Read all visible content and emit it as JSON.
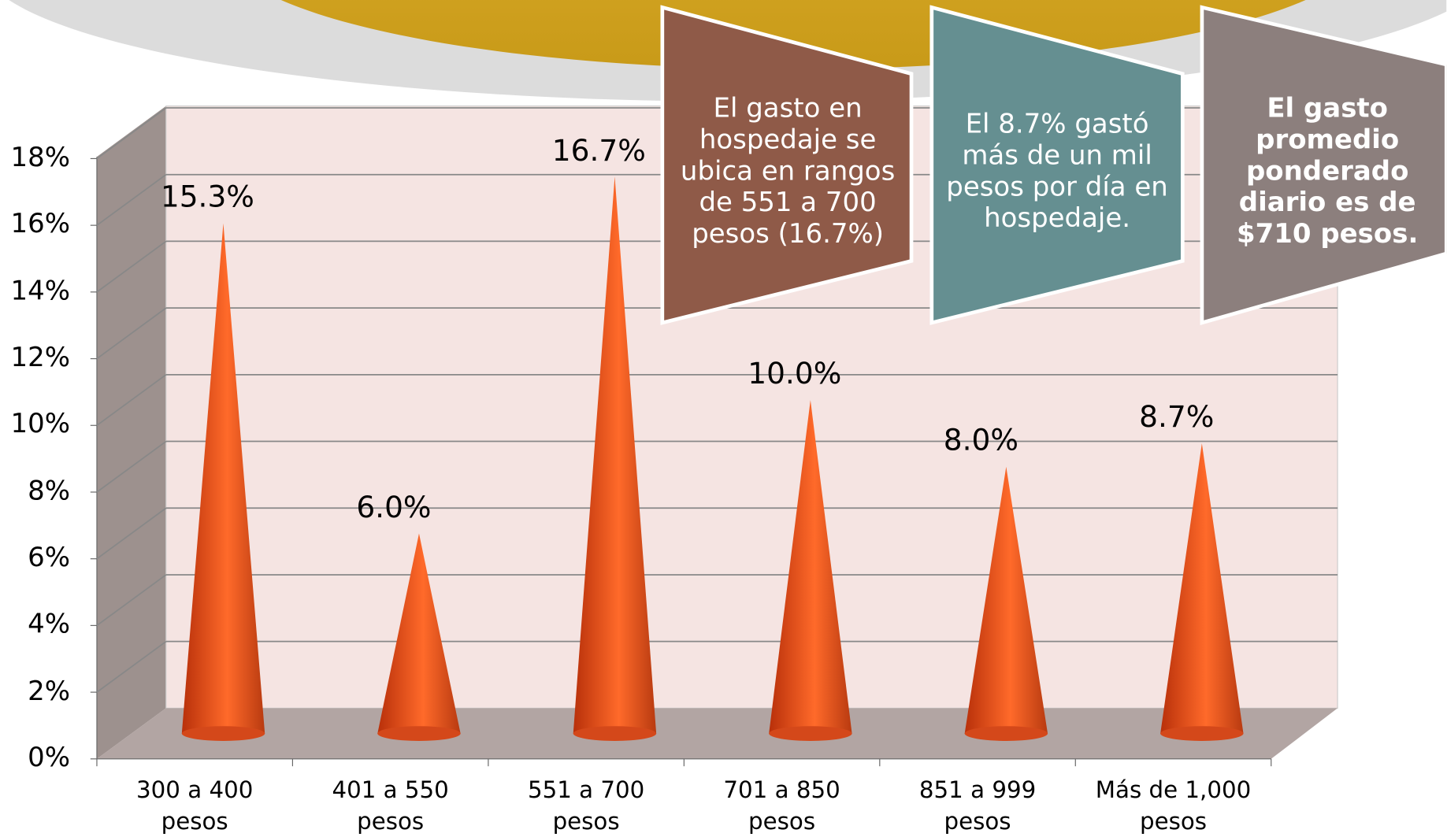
{
  "chart_data": {
    "type": "cone3d",
    "categories": [
      "300 a 400 pesos",
      "401 a 550 pesos",
      "551 a 700 pesos",
      "701 a 850 pesos",
      "851 a 999 pesos",
      "Más de 1,000 pesos"
    ],
    "values": [
      15.3,
      6.0,
      16.7,
      10.0,
      8.0,
      8.7
    ],
    "value_labels": [
      "15.3%",
      "6.0%",
      "16.7%",
      "10.0%",
      "8.0%",
      "8.7%"
    ],
    "color": "#e8501c",
    "ylim": [
      0,
      18
    ],
    "yticks": [
      {
        "value": 0,
        "label": "0%"
      },
      {
        "value": 2,
        "label": "2%"
      },
      {
        "value": 4,
        "label": "4%"
      },
      {
        "value": 6,
        "label": "6%"
      },
      {
        "value": 8,
        "label": "8%"
      },
      {
        "value": 10,
        "label": "10%"
      },
      {
        "value": 12,
        "label": "12%"
      },
      {
        "value": 14,
        "label": "14%"
      },
      {
        "value": 16,
        "label": "16%"
      },
      {
        "value": 18,
        "label": "18%"
      }
    ],
    "grid": true,
    "annotations": [
      {
        "text": "El gasto en hospedaje se ubica en rangos de 551 a 700 pesos (16.7%)",
        "color": "#8f5a48",
        "bold": false
      },
      {
        "text": "El 8.7% gastó más de un mil pesos por día en hospedaje.",
        "color": "#658f91",
        "bold": false
      },
      {
        "text": "El gasto promedio ponderado diario es de $710 pesos.",
        "color": "#8c7f7d",
        "bold": true
      }
    ]
  }
}
